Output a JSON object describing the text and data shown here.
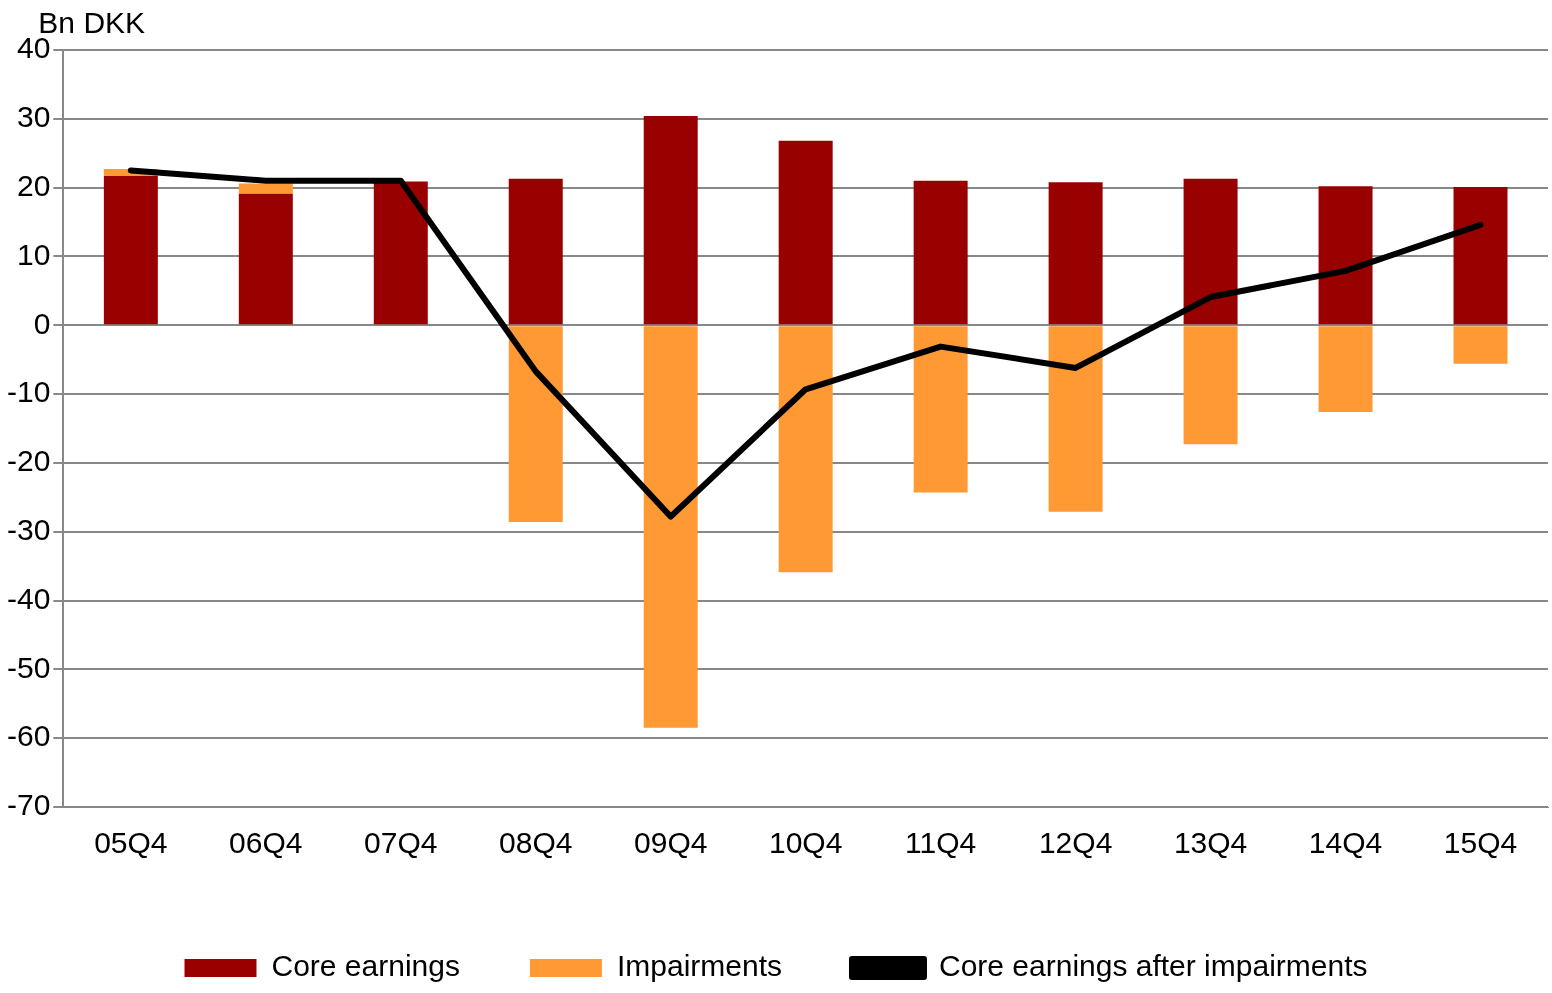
{
  "chart_data": {
    "type": "bar",
    "ylabel": "Bn DKK",
    "stacked": true,
    "categories": [
      "05Q4",
      "06Q4",
      "07Q4",
      "08Q4",
      "09Q4",
      "10Q4",
      "11Q4",
      "12Q4",
      "13Q4",
      "14Q4",
      "15Q4"
    ],
    "series": [
      {
        "name": "Core earnings",
        "color": "#990000",
        "values": [
          21.7,
          19.1,
          20.9,
          21.3,
          30.4,
          26.8,
          21.0,
          20.8,
          21.3,
          20.2,
          20.1
        ]
      },
      {
        "name": "Impairments",
        "color": "#ff9933",
        "values": [
          1.0,
          1.5,
          null,
          -28.6,
          -58.5,
          -35.9,
          -24.3,
          -27.1,
          -17.3,
          -12.6,
          -5.6
        ]
      },
      {
        "name": "Core earnings after impairments",
        "type": "line",
        "color": "#000000",
        "values": [
          22.5,
          21.0,
          21.0,
          -6.7,
          -27.8,
          -9.3,
          -3.1,
          -6.2,
          4.1,
          7.9,
          14.6
        ]
      }
    ],
    "ylim": [
      -70,
      40
    ],
    "yticks": [
      -70,
      -60,
      -50,
      -40,
      -30,
      -20,
      -10,
      0,
      10,
      20,
      30,
      40
    ],
    "grid": "y",
    "legend": "bottom",
    "marker": "none",
    "line_style": "solid"
  }
}
